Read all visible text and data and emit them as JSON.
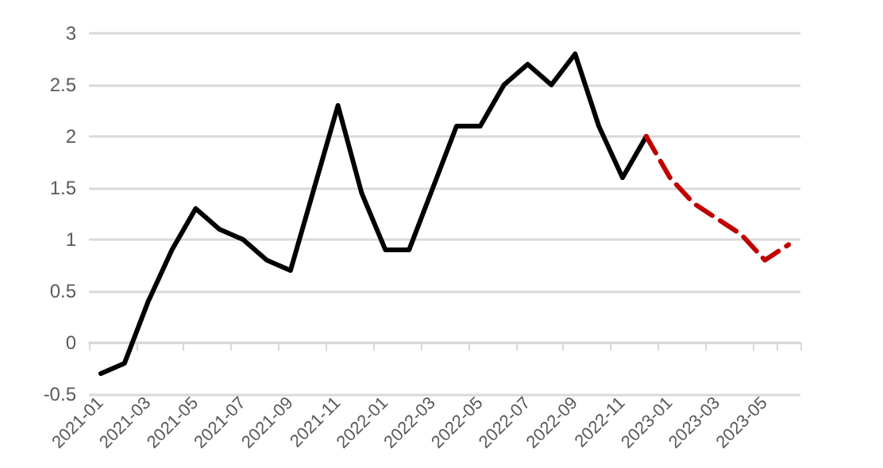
{
  "chart_data": {
    "type": "line",
    "categories": [
      "2021-01",
      null,
      "2021-03",
      null,
      "2021-05",
      null,
      "2021-07",
      null,
      "2021-09",
      null,
      "2021-11",
      null,
      "2022-01",
      null,
      "2022-03",
      null,
      "2022-05",
      null,
      "2022-07",
      null,
      "2022-09",
      null,
      "2022-11",
      null,
      "2023-01",
      null,
      "2023-03",
      null,
      "2023-05",
      null
    ],
    "series": [
      {
        "color": "#000000",
        "line_style": "solid",
        "values": [
          -0.3,
          -0.2,
          0.4,
          0.9,
          1.3,
          1.1,
          1.0,
          0.8,
          0.7,
          1.5,
          2.3,
          1.45,
          0.9,
          0.9,
          1.5,
          2.1,
          2.1,
          2.5,
          2.7,
          2.5,
          2.8,
          2.1,
          1.6,
          2.0,
          null,
          null,
          null,
          null,
          null,
          null
        ]
      },
      {
        "color": "#c00000",
        "line_style": "dashed",
        "values": [
          null,
          null,
          null,
          null,
          null,
          null,
          null,
          null,
          null,
          null,
          null,
          null,
          null,
          null,
          null,
          null,
          null,
          null,
          null,
          null,
          null,
          null,
          null,
          2.0,
          1.6,
          1.35,
          1.2,
          1.05,
          0.8,
          0.95
        ]
      }
    ],
    "ylim": [
      -0.5,
      3
    ],
    "yticks": [
      -0.5,
      0,
      0.5,
      1,
      1.5,
      2,
      2.5,
      3
    ],
    "grid": "y",
    "marker": "none"
  }
}
